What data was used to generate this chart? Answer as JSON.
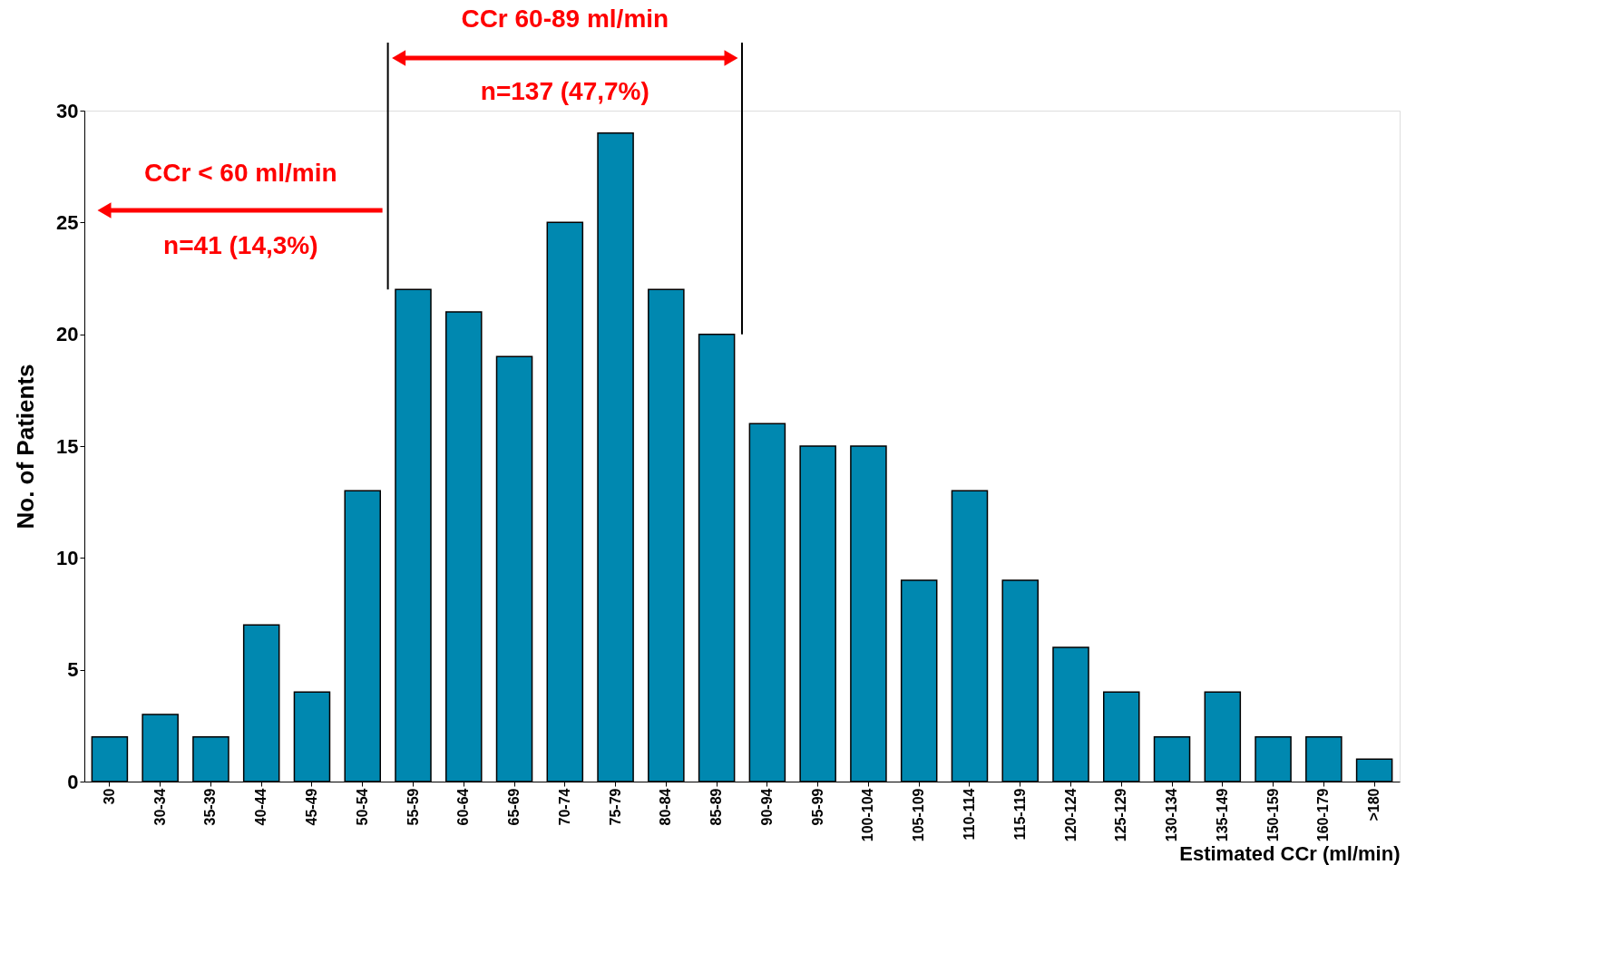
{
  "chart_data": {
    "type": "bar",
    "xlabel": "Estimated CCr (ml/min)",
    "ylabel": "No. of Patients",
    "categories": [
      "30",
      "30-34",
      "35-39",
      "40-44",
      "45-49",
      "50-54",
      "55-59",
      "60-64",
      "65-69",
      "70-74",
      "75-79",
      "80-84",
      "85-89",
      "90-94",
      "95-99",
      "100-104",
      "105-109",
      "110-114",
      "115-119",
      "120-124",
      "125-129",
      "130-134",
      "135-149",
      "150-159",
      "160-179",
      ">180"
    ],
    "values": [
      2,
      3,
      2,
      7,
      4,
      13,
      22,
      21,
      19,
      25,
      29,
      22,
      20,
      16,
      15,
      15,
      9,
      13,
      9,
      6,
      4,
      2,
      4,
      2,
      2,
      1
    ],
    "color": "#0088b0",
    "ylim": [
      0,
      30
    ],
    "yticks": [
      0,
      5,
      10,
      15,
      20,
      25,
      30
    ],
    "grid": false,
    "ref_lines": [
      {
        "axis": "x",
        "value": "55-59",
        "color": "#000000"
      },
      {
        "axis": "x",
        "value": "90-94",
        "color": "#000000"
      }
    ],
    "annotations": [
      "CCr 60-89 ml/min",
      "n=137 (47,7%)",
      "CCr < 60 ml/min",
      "n=41 (14,3%)"
    ]
  }
}
